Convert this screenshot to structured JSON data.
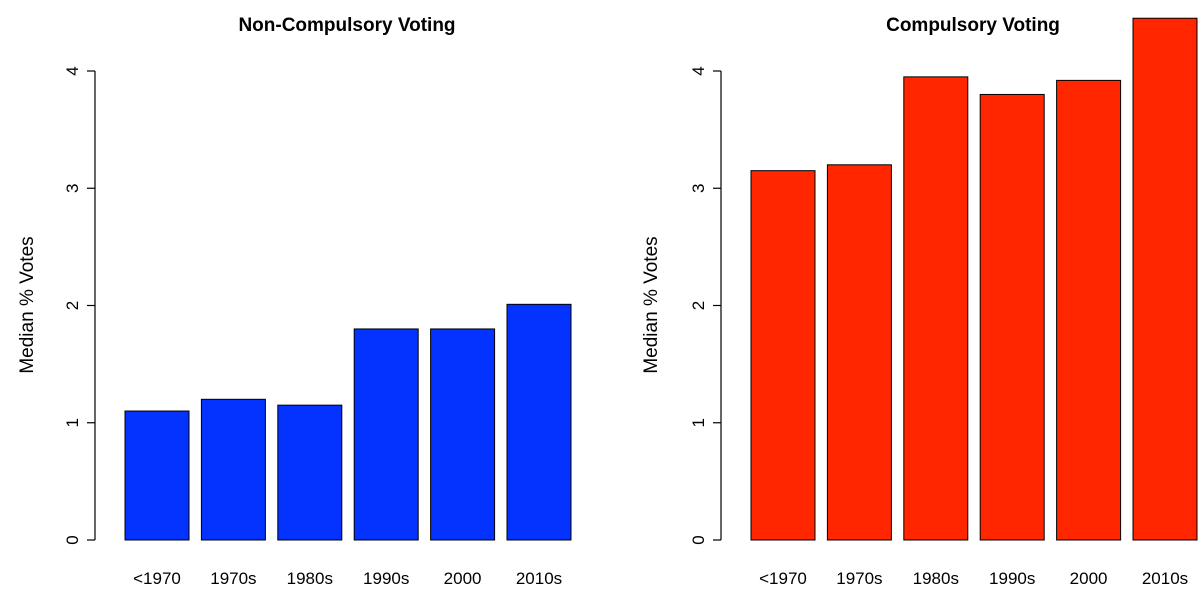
{
  "chart_data": [
    {
      "type": "bar",
      "title": "Non-Compulsory Voting",
      "ylabel": "Median %  Votes",
      "xlabel": "",
      "categories": [
        "<1970",
        "1970s",
        "1980s",
        "1990s",
        "2000",
        "2010s"
      ],
      "values": [
        1.1,
        1.2,
        1.15,
        1.8,
        1.8,
        2.01
      ],
      "ylim": [
        0,
        4
      ],
      "yticks": [
        "0",
        "1",
        "2",
        "3",
        "4"
      ],
      "color": "#0433ff",
      "grid": false
    },
    {
      "type": "bar",
      "title": "Compulsory Voting",
      "ylabel": "Median %  Votes",
      "xlabel": "",
      "categories": [
        "<1970",
        "1970s",
        "1980s",
        "1990s",
        "2000",
        "2010s"
      ],
      "values": [
        3.15,
        3.2,
        3.95,
        3.8,
        3.92,
        4.45
      ],
      "ylim": [
        0,
        4
      ],
      "yticks": [
        "0",
        "1",
        "2",
        "3",
        "4"
      ],
      "color": "#ff2600",
      "grid": false
    }
  ]
}
